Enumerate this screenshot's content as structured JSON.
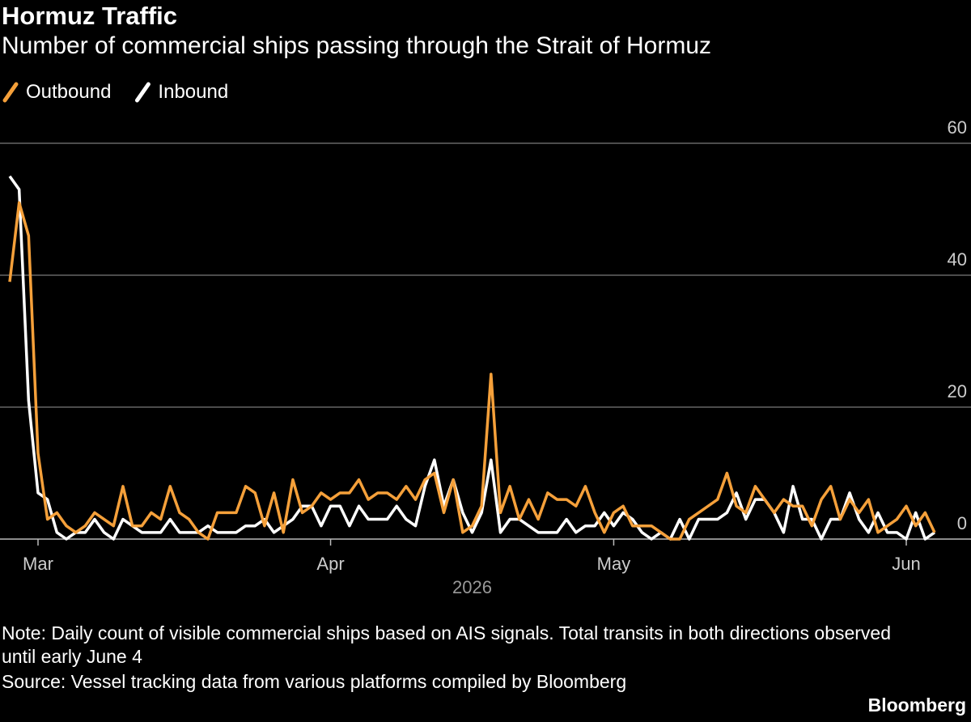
{
  "chart_data": {
    "type": "line",
    "title": "Hormuz Traffic",
    "subtitle": "Number of commercial ships passing through the Strait of Hormuz",
    "x_label": "2026",
    "note": "Note: Daily count of visible commercial ships based on AIS signals. Total transits in both directions observed until early June 4",
    "source": "Source: Vessel tracking data from various platforms compiled by Bloomberg",
    "brand": "Bloomberg",
    "xlim": [
      0,
      98
    ],
    "xticks": [
      {
        "value": 3,
        "label": "Mar"
      },
      {
        "value": 34,
        "label": "Apr"
      },
      {
        "value": 64,
        "label": "May"
      },
      {
        "value": 95,
        "label": "Jun"
      }
    ],
    "ylim": [
      0,
      60
    ],
    "yticks": [
      0,
      20,
      40,
      60
    ],
    "grid": true,
    "legend": "top-left",
    "series": [
      {
        "name": "Outbound",
        "color": "#f5a03a",
        "values": [
          39,
          51,
          46,
          13,
          3,
          4,
          2,
          1,
          2,
          4,
          3,
          2,
          8,
          2,
          2,
          4,
          3,
          8,
          4,
          3,
          1,
          0,
          4,
          4,
          4,
          8,
          7,
          2,
          7,
          1,
          9,
          4,
          5,
          7,
          6,
          7,
          7,
          9,
          6,
          7,
          7,
          6,
          8,
          6,
          9,
          10,
          4,
          9,
          1,
          2,
          5,
          25,
          4,
          8,
          3,
          6,
          3,
          7,
          6,
          6,
          5,
          8,
          4,
          1,
          4,
          5,
          2,
          2,
          2,
          1,
          0,
          0,
          3,
          4,
          5,
          6,
          10,
          5,
          4,
          8,
          6,
          4,
          6,
          5,
          5,
          2,
          6,
          8,
          3,
          6,
          4,
          6,
          1,
          2,
          3,
          5,
          2,
          4,
          1
        ]
      },
      {
        "name": "Inbound",
        "color": "#ffffff",
        "values": [
          55,
          53,
          21,
          7,
          6,
          1,
          0,
          1,
          1,
          3,
          1,
          0,
          3,
          2,
          1,
          1,
          1,
          3,
          1,
          1,
          1,
          2,
          1,
          1,
          1,
          2,
          2,
          3,
          1,
          2,
          3,
          5,
          5,
          2,
          5,
          5,
          2,
          5,
          3,
          3,
          3,
          5,
          3,
          2,
          8,
          12,
          5,
          9,
          4,
          1,
          4,
          12,
          1,
          3,
          3,
          2,
          1,
          1,
          1,
          3,
          1,
          2,
          2,
          4,
          2,
          4,
          3,
          1,
          0,
          1,
          0,
          3,
          0,
          3,
          3,
          3,
          4,
          7,
          3,
          6,
          6,
          4,
          1,
          8,
          3,
          3,
          0,
          3,
          3,
          7,
          3,
          1,
          4,
          1,
          1,
          0,
          4,
          0,
          1
        ]
      }
    ]
  }
}
